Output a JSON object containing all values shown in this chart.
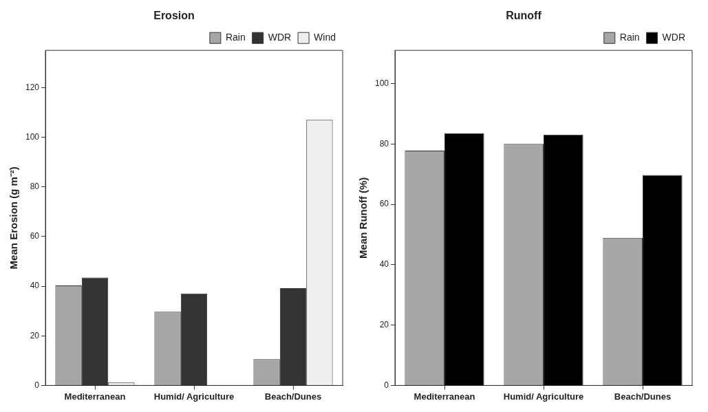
{
  "chart_data": [
    {
      "type": "bar",
      "title": "Erosion",
      "ylabel": "Mean Erosion (g m⁻²)",
      "categories": [
        "Mediterranean",
        "Humid/ Agriculture",
        "Beach/Dunes"
      ],
      "series": [
        {
          "name": "Rain",
          "color": "#a6a6a6",
          "values": [
            40.3,
            29.7,
            10.6
          ]
        },
        {
          "name": "WDR",
          "color": "#333333",
          "values": [
            43.5,
            37.0,
            39.2
          ]
        },
        {
          "name": "Wind",
          "color": "#eeeeee",
          "values": [
            1.3,
            null,
            107
          ]
        }
      ],
      "ylim": [
        0,
        135
      ],
      "yticks": [
        0,
        20,
        40,
        60,
        80,
        100,
        120
      ],
      "legend": "top right"
    },
    {
      "type": "bar",
      "title": "Runoff",
      "ylabel": "Mean Runoff (%)",
      "categories": [
        "Mediterranean",
        "Humid/ Agriculture",
        "Beach/Dunes"
      ],
      "series": [
        {
          "name": "Rain",
          "color": "#a6a6a6",
          "values": [
            77.8,
            80.0,
            48.9
          ]
        },
        {
          "name": "WDR",
          "color": "#000000",
          "values": [
            83.5,
            83.1,
            69.7
          ]
        }
      ],
      "ylim": [
        0,
        111
      ],
      "yticks": [
        0,
        20,
        40,
        60,
        80,
        100
      ],
      "legend": "top right"
    }
  ]
}
